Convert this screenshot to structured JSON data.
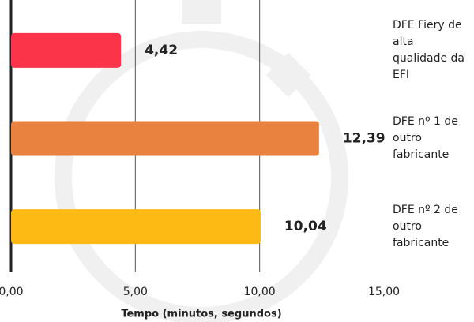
{
  "chart_data": {
    "type": "bar",
    "orientation": "horizontal",
    "categories": [
      "DFE Fiery de alta qualidade da EFI",
      "DFE nº 1 de outro fabricante",
      "DFE nº 2 de outro fabricante"
    ],
    "values": [
      4.42,
      12.39,
      10.04
    ],
    "value_labels": [
      "4,42",
      "12,39",
      "10,04"
    ],
    "colors": [
      "#fc3449",
      "#e9823f",
      "#fdb914"
    ],
    "xlim": [
      0,
      15
    ],
    "xticks": [
      {
        "value": 0,
        "label": "0,00"
      },
      {
        "value": 5,
        "label": "5,00"
      },
      {
        "value": 10,
        "label": "10,00"
      },
      {
        "value": 15,
        "label": "15,00"
      }
    ],
    "xlabel": "Tempo (minutos, segundos)",
    "grid": true
  }
}
